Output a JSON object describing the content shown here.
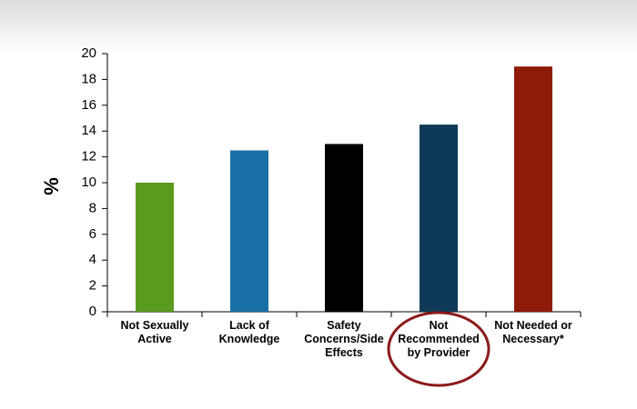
{
  "chart_data": {
    "type": "bar",
    "y_label": "%",
    "categories": [
      [
        "Not Sexually",
        "Active"
      ],
      [
        "Lack of",
        "Knowledge"
      ],
      [
        "Safety",
        "Concerns/Side",
        "Effects"
      ],
      [
        "Not",
        "Recommended",
        "by Provider"
      ],
      [
        "Not Needed or",
        "Necessary*"
      ]
    ],
    "values": [
      10,
      12.5,
      13,
      14.5,
      19
    ],
    "colors": [
      "#5a9a1f",
      "#1a6ea6",
      "#000000",
      "#0e3a58",
      "#8e1a08"
    ],
    "ylim": [
      0,
      20
    ],
    "yticks": [
      0,
      2,
      4,
      6,
      8,
      10,
      12,
      14,
      16,
      18,
      20
    ]
  }
}
